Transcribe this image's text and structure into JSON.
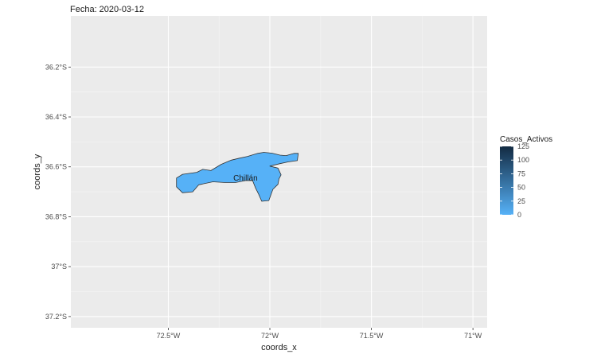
{
  "chart_data": {
    "type": "map",
    "title": "Fecha: 2020-03-12",
    "xlabel": "coords_x",
    "ylabel": "coords_y",
    "x_ticks": [
      {
        "value": -72.5,
        "label": "72.5°W"
      },
      {
        "value": -72.0,
        "label": "72°W"
      },
      {
        "value": -71.5,
        "label": "71.5°W"
      },
      {
        "value": -71.0,
        "label": "71°W"
      }
    ],
    "y_ticks": [
      {
        "value": -36.2,
        "label": "36.2°S"
      },
      {
        "value": -36.4,
        "label": "36.4°S"
      },
      {
        "value": -36.6,
        "label": "36.6°S"
      },
      {
        "value": -36.8,
        "label": "36.8°S"
      },
      {
        "value": -37.0,
        "label": "37°S"
      },
      {
        "value": -37.2,
        "label": "37.2°S"
      }
    ],
    "xlim": [
      -72.98,
      -70.93
    ],
    "ylim": [
      -37.245,
      -35.995
    ],
    "grid": true,
    "region": {
      "label": "Chillán",
      "value": 0,
      "fill": "#56B1F7",
      "label_lon": -72.12,
      "label_lat": -36.645,
      "outline": [
        [
          -72.46,
          -36.645
        ],
        [
          -72.43,
          -36.63
        ],
        [
          -72.36,
          -36.622
        ],
        [
          -72.33,
          -36.61
        ],
        [
          -72.29,
          -36.615
        ],
        [
          -72.24,
          -36.59
        ],
        [
          -72.19,
          -36.573
        ],
        [
          -72.15,
          -36.565
        ],
        [
          -72.11,
          -36.558
        ],
        [
          -72.06,
          -36.546
        ],
        [
          -72.03,
          -36.542
        ],
        [
          -71.99,
          -36.545
        ],
        [
          -71.95,
          -36.553
        ],
        [
          -71.92,
          -36.555
        ],
        [
          -71.88,
          -36.546
        ],
        [
          -71.86,
          -36.546
        ],
        [
          -71.865,
          -36.575
        ],
        [
          -71.91,
          -36.58
        ],
        [
          -71.95,
          -36.587
        ],
        [
          -72.0,
          -36.597
        ],
        [
          -71.96,
          -36.605
        ],
        [
          -71.945,
          -36.632
        ],
        [
          -71.955,
          -36.648
        ],
        [
          -71.96,
          -36.67
        ],
        [
          -71.985,
          -36.69
        ],
        [
          -72.005,
          -36.735
        ],
        [
          -72.04,
          -36.738
        ],
        [
          -72.055,
          -36.71
        ],
        [
          -72.07,
          -36.686
        ],
        [
          -72.085,
          -36.655
        ],
        [
          -72.12,
          -36.655
        ],
        [
          -72.17,
          -36.663
        ],
        [
          -72.22,
          -36.663
        ],
        [
          -72.28,
          -36.66
        ],
        [
          -72.35,
          -36.672
        ],
        [
          -72.38,
          -36.7
        ],
        [
          -72.43,
          -36.704
        ],
        [
          -72.46,
          -36.68
        ]
      ]
    },
    "legend": {
      "title": "Casos_Activos",
      "position": "right",
      "min": 0,
      "max": 125,
      "low_color": "#56B1F7",
      "high_color": "#132B43",
      "breaks": [
        0,
        25,
        50,
        75,
        100,
        125
      ]
    }
  }
}
